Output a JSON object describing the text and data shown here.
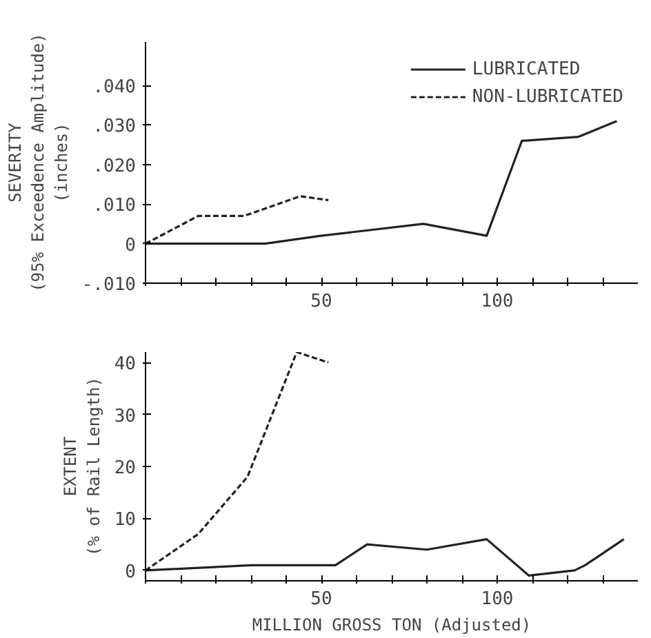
{
  "chart_data": [
    {
      "type": "line",
      "ylabel": "SEVERITY\n(95% Exceedence Amplitude)\n(inches)",
      "xlim": [
        0,
        140
      ],
      "ylim": [
        -0.01,
        0.051
      ],
      "xticks": [
        {
          "value": 0,
          "label": null
        },
        {
          "value": 10,
          "label": null
        },
        {
          "value": 20,
          "label": null
        },
        {
          "value": 30,
          "label": null
        },
        {
          "value": 40,
          "label": null
        },
        50,
        {
          "value": 60,
          "label": null
        },
        {
          "value": 70,
          "label": null
        },
        {
          "value": 80,
          "label": null
        },
        {
          "value": 90,
          "label": null
        },
        100,
        {
          "value": 110,
          "label": null
        },
        {
          "value": 120,
          "label": null
        },
        {
          "value": 130,
          "label": null
        }
      ],
      "yticks": [
        {
          "value": -0.01,
          "label": "-.010"
        },
        0,
        {
          "value": 0.01,
          "label": ".010"
        },
        {
          "value": 0.02,
          "label": ".020"
        },
        {
          "value": 0.03,
          "label": ".030"
        },
        {
          "value": 0.04,
          "label": ".040"
        }
      ],
      "grid": false,
      "legend": "top right",
      "series": [
        {
          "name": "LUBRICATED",
          "color": "#222222",
          "line_style": "solid",
          "x": [
            0,
            34,
            50,
            79,
            97,
            107,
            123,
            134
          ],
          "values": [
            0,
            0,
            0.002,
            0.005,
            0.002,
            0.026,
            0.027,
            0.031
          ]
        },
        {
          "name": "NON-LUBRICATED",
          "color": "#222222",
          "line_style": "dashed",
          "x": [
            0,
            15,
            28,
            44,
            52
          ],
          "values": [
            0,
            0.007,
            0.007,
            0.012,
            0.011
          ]
        }
      ]
    },
    {
      "type": "line",
      "xlabel": "MILLION GROSS TON (Adjusted)",
      "ylabel": "EXTENT\n(% of Rail Length)",
      "xlim": [
        0,
        140
      ],
      "ylim": [
        -2,
        42
      ],
      "xticks": [
        {
          "value": 0,
          "label": null
        },
        {
          "value": 10,
          "label": null
        },
        {
          "value": 20,
          "label": null
        },
        {
          "value": 30,
          "label": null
        },
        {
          "value": 40,
          "label": null
        },
        50,
        {
          "value": 60,
          "label": null
        },
        {
          "value": 70,
          "label": null
        },
        {
          "value": 80,
          "label": null
        },
        {
          "value": 90,
          "label": null
        },
        100,
        {
          "value": 110,
          "label": null
        },
        {
          "value": 120,
          "label": null
        },
        {
          "value": 130,
          "label": null
        }
      ],
      "yticks": [
        0,
        10,
        20,
        30,
        40
      ],
      "grid": false,
      "series": [
        {
          "color": "#222222",
          "line_style": "solid",
          "x": [
            0,
            30,
            51,
            54,
            63,
            80,
            97,
            109,
            122,
            125,
            136
          ],
          "values": [
            0,
            1,
            1,
            1,
            5,
            4,
            6,
            -1,
            0,
            1,
            6
          ]
        },
        {
          "color": "#222222",
          "line_style": "dashed",
          "x": [
            0,
            15,
            29,
            43,
            52
          ],
          "values": [
            0,
            7,
            18,
            42,
            40
          ]
        }
      ]
    }
  ]
}
